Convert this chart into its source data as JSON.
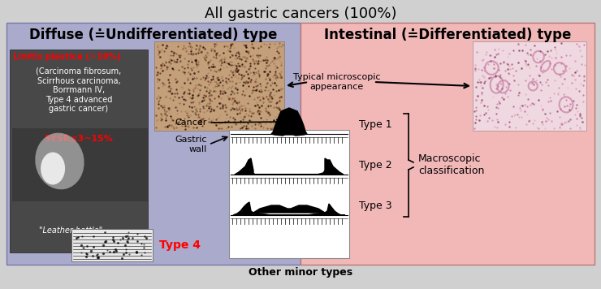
{
  "title": "All gastric cancers (100%)",
  "title_fontsize": 13,
  "footer": "Other minor types",
  "footer_fontsize": 9,
  "bg_color": "#d0d0d0",
  "left_panel_color": "#aaaacc",
  "right_panel_color": "#f2b8b8",
  "left_title": "Diffuse (≐Undifferentiated) type",
  "right_title": "Intestinal (≐Differentiated) type",
  "panel_title_fontsize": 12,
  "linitis_text_red": "Linitis plastica (~10%)",
  "linitis_text_black": "(Carcinoma fibrosum,\nScirrhous carcinoma,\nBorrmann IV,\nType 4 advanced\ngastric cancer)",
  "survival_text": "5YSR≤3~15%",
  "leather_label": "\"Leather bottle\"",
  "type4_label": "Type 4",
  "microscopic_label": "Typical microscopic\nappearance",
  "cancer_label": "Cancer",
  "gastric_wall_label": "Gastric\nwall",
  "type1_label": "Type 1",
  "type2_label": "Type 2",
  "type3_label": "Type 3",
  "macroscopic_label": "Macroscopic\nclassification"
}
